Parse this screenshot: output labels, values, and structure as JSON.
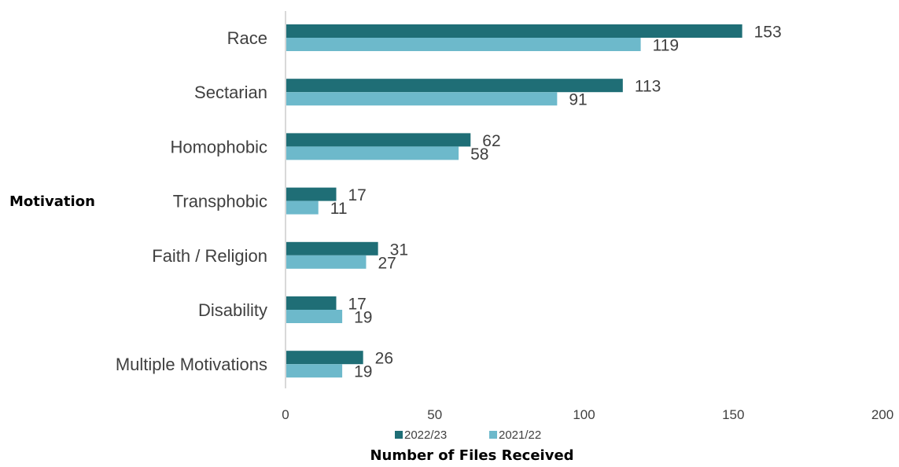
{
  "chart_data": {
    "type": "bar",
    "orientation": "horizontal",
    "categories": [
      "Race",
      "Sectarian",
      "Homophobic",
      "Transphobic",
      "Faith / Religion",
      "Disability",
      "Multiple Motivations"
    ],
    "series": [
      {
        "name": "2022/23",
        "values": [
          153,
          113,
          62,
          17,
          31,
          17,
          26
        ],
        "color": "#1F6E76"
      },
      {
        "name": "2021/22",
        "values": [
          119,
          91,
          58,
          11,
          27,
          19,
          19
        ],
        "color": "#6DB9CB"
      }
    ],
    "xlabel": "Number of Files Received",
    "ylabel": "Motivation",
    "xlim": [
      0,
      200
    ],
    "xticks": [
      0,
      50,
      100,
      150,
      200
    ],
    "grid": false,
    "legend_position": "bottom"
  }
}
